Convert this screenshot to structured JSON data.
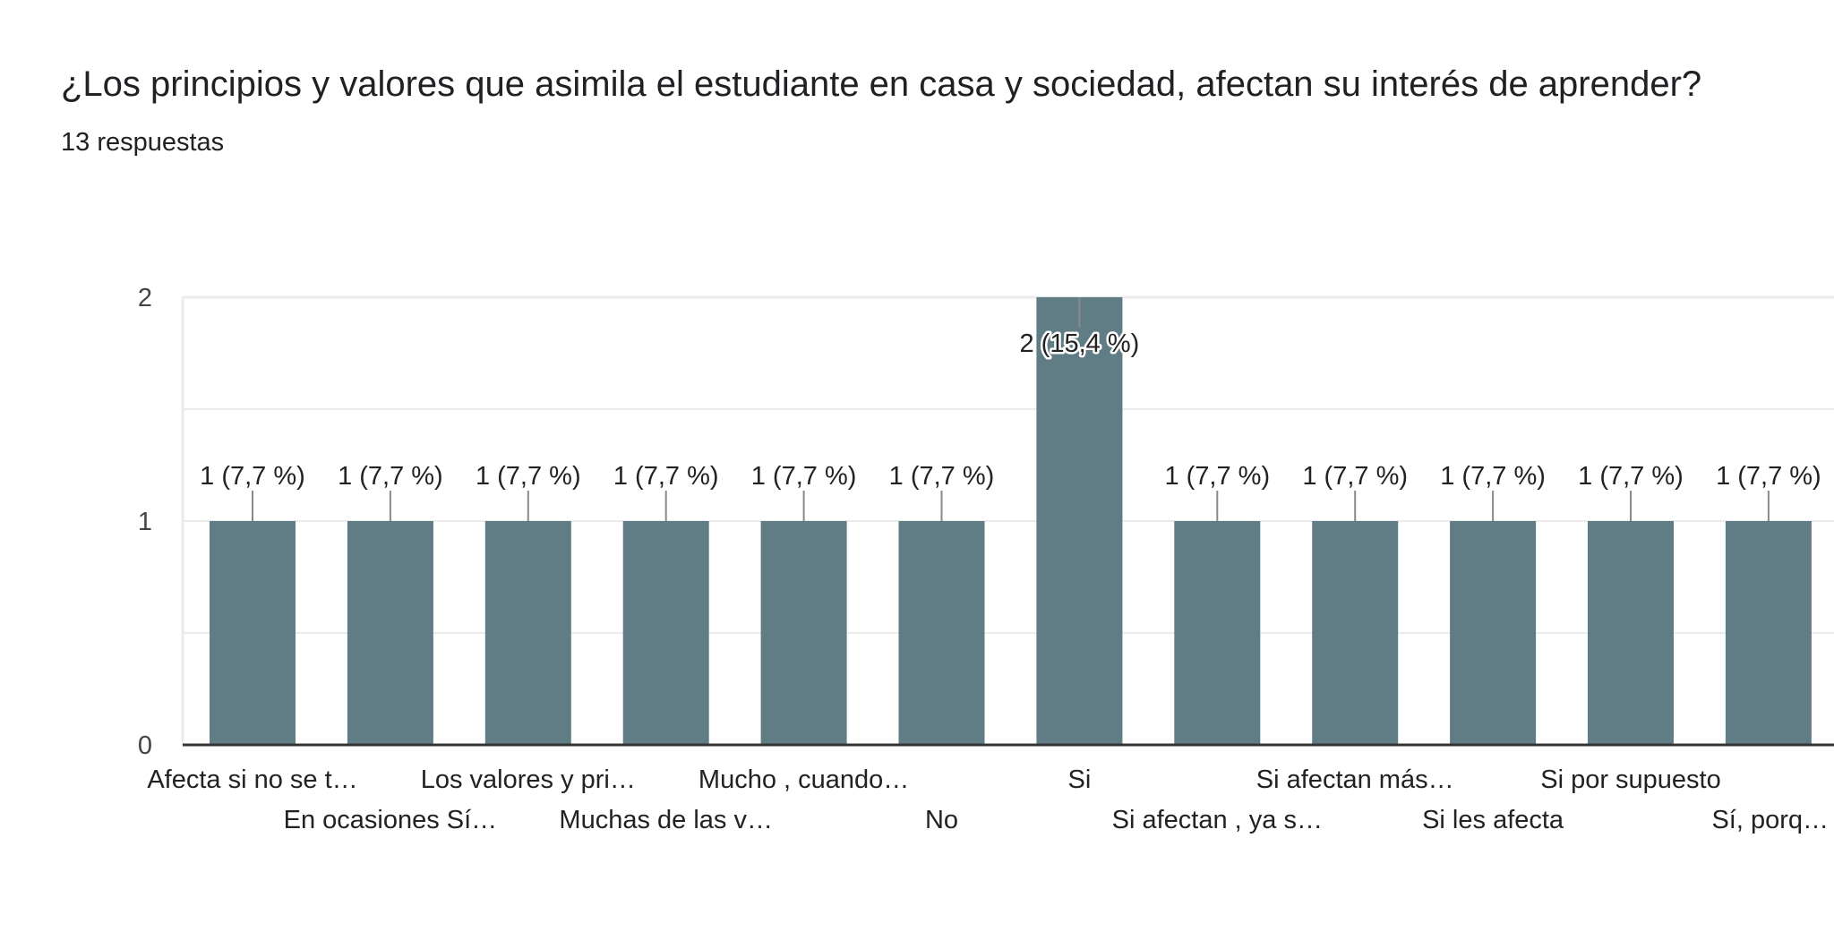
{
  "header": {
    "question": "¿Los principios y valores que asimila el estudiante en casa y sociedad, afectan su interés de aprender?",
    "responses": "13 respuestas"
  },
  "chart_data": {
    "type": "bar",
    "title": "¿Los principios y valores que asimila el estudiante en casa y sociedad, afectan su interés de aprender?",
    "subtitle": "13 respuestas",
    "categories": [
      "Afecta si no se t…",
      "En ocasiones Sí…",
      "Los valores y pri…",
      "Muchas de las v…",
      "Mucho , cuando…",
      "No",
      "Si",
      "Si afectan , ya s…",
      "Si afectan más…",
      "Si les afecta",
      "Si por supuesto",
      "Sí, porq…"
    ],
    "values": [
      1,
      1,
      1,
      1,
      1,
      1,
      2,
      1,
      1,
      1,
      1,
      1
    ],
    "data_labels": [
      "1 (7,7 %)",
      "1 (7,7 %)",
      "1 (7,7 %)",
      "1 (7,7 %)",
      "1 (7,7 %)",
      "1 (7,7 %)",
      "2 (15,4 %)",
      "1 (7,7 %)",
      "1 (7,7 %)",
      "1 (7,7 %)",
      "1 (7,7 %)",
      "1 (7,7 %)"
    ],
    "yticks": [
      "0",
      "1",
      "2"
    ],
    "ylim": [
      0,
      2
    ],
    "xlabel": "",
    "ylabel": "",
    "grid": true,
    "legend": "none",
    "colors": {
      "bar": "#607d86",
      "axis": "#333333",
      "grid": "#ebebeb",
      "leader": "#8a8a8a"
    }
  }
}
